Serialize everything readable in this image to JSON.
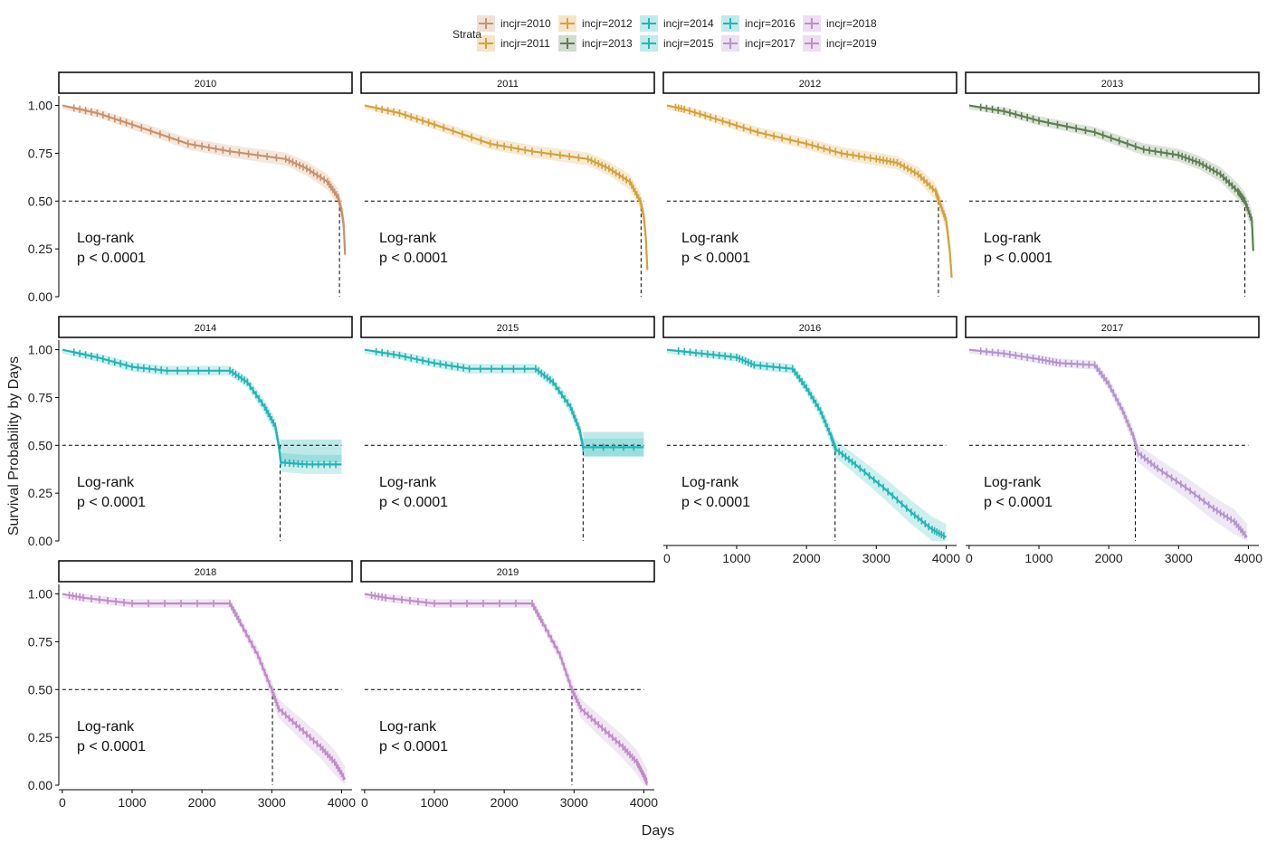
{
  "legend": {
    "title": "Strata",
    "items": [
      {
        "label": "incjr=2010",
        "color": "#C8926A"
      },
      {
        "label": "incjr=2011",
        "color": "#D4A23C"
      },
      {
        "label": "incjr=2012",
        "color": "#D4A23C"
      },
      {
        "label": "incjr=2013",
        "color": "#5E7E52"
      },
      {
        "label": "incjr=2014",
        "color": "#23B5B5"
      },
      {
        "label": "incjr=2015",
        "color": "#23B5B5"
      },
      {
        "label": "incjr=2016",
        "color": "#23B5B5"
      },
      {
        "label": "incjr=2017",
        "color": "#B394CC"
      },
      {
        "label": "incjr=2018",
        "color": "#C08CC8"
      },
      {
        "label": "incjr=2019",
        "color": "#C08CC8"
      }
    ]
  },
  "axes": {
    "xlabel": "Days",
    "ylabel": "Survival Probability by Days"
  },
  "chart_data": {
    "type": "line",
    "xlabel": "Days",
    "ylabel": "Survival Probability by Days",
    "xlim": [
      -50,
      4150
    ],
    "ylim": [
      0,
      1.05
    ],
    "xticks": [
      "0",
      "1000",
      "2000",
      "3000",
      "4000"
    ],
    "yticks": [
      "0.00",
      "0.25",
      "0.50",
      "0.75",
      "1.00"
    ],
    "xtick_values": [
      0,
      1000,
      2000,
      3000,
      4000
    ],
    "ytick_values": [
      0,
      0.25,
      0.5,
      0.75,
      1.0
    ],
    "reference_y": 0.5,
    "panels": [
      {
        "title": "2010",
        "color": "#C8926A",
        "annotation": [
          "Log-rank",
          "p < 0.0001"
        ],
        "median": 3970,
        "points": [
          [
            0,
            1.0
          ],
          [
            500,
            0.96
          ],
          [
            1000,
            0.9
          ],
          [
            1800,
            0.8
          ],
          [
            2400,
            0.76
          ],
          [
            3200,
            0.72
          ],
          [
            3500,
            0.67
          ],
          [
            3800,
            0.6
          ],
          [
            3950,
            0.52
          ],
          [
            4000,
            0.45
          ],
          [
            4030,
            0.38
          ],
          [
            4050,
            0.22
          ]
        ]
      },
      {
        "title": "2011",
        "color": "#D4A23C",
        "annotation": [
          "Log-rank",
          "p < 0.0001"
        ],
        "median": 3960,
        "points": [
          [
            0,
            1.0
          ],
          [
            500,
            0.96
          ],
          [
            1000,
            0.9
          ],
          [
            1800,
            0.8
          ],
          [
            2400,
            0.76
          ],
          [
            3200,
            0.72
          ],
          [
            3500,
            0.67
          ],
          [
            3800,
            0.6
          ],
          [
            3950,
            0.5
          ],
          [
            4000,
            0.42
          ],
          [
            4030,
            0.3
          ],
          [
            4050,
            0.14
          ]
        ]
      },
      {
        "title": "2012",
        "color": "#D4A23C",
        "annotation": [
          "Log-rank",
          "p < 0.0001"
        ],
        "median": 3890,
        "points": [
          [
            0,
            1.0
          ],
          [
            250,
            0.98
          ],
          [
            700,
            0.93
          ],
          [
            1300,
            0.86
          ],
          [
            2000,
            0.8
          ],
          [
            2500,
            0.75
          ],
          [
            3000,
            0.72
          ],
          [
            3300,
            0.7
          ],
          [
            3600,
            0.64
          ],
          [
            3850,
            0.55
          ],
          [
            3900,
            0.5
          ],
          [
            4000,
            0.4
          ],
          [
            4050,
            0.25
          ],
          [
            4080,
            0.1
          ]
        ]
      },
      {
        "title": "2013",
        "color": "#5E7E52",
        "annotation": [
          "Log-rank",
          "p < 0.0001"
        ],
        "median": 3950,
        "points": [
          [
            0,
            1.0
          ],
          [
            500,
            0.97
          ],
          [
            1000,
            0.92
          ],
          [
            1800,
            0.86
          ],
          [
            2500,
            0.77
          ],
          [
            3000,
            0.74
          ],
          [
            3300,
            0.7
          ],
          [
            3600,
            0.64
          ],
          [
            3850,
            0.55
          ],
          [
            3950,
            0.5
          ],
          [
            4050,
            0.4
          ],
          [
            4070,
            0.24
          ]
        ]
      },
      {
        "title": "2014",
        "color": "#23B5B5",
        "annotation": [
          "Log-rank",
          "p < 0.0001"
        ],
        "median": 3120,
        "ci_band": [
          0.41,
          0.53
        ],
        "points": [
          [
            0,
            1.0
          ],
          [
            500,
            0.96
          ],
          [
            1000,
            0.91
          ],
          [
            1500,
            0.89
          ],
          [
            2400,
            0.89
          ],
          [
            2650,
            0.83
          ],
          [
            2900,
            0.7
          ],
          [
            3050,
            0.6
          ],
          [
            3100,
            0.5
          ],
          [
            3130,
            0.41
          ],
          [
            3500,
            0.4
          ],
          [
            4000,
            0.4
          ]
        ]
      },
      {
        "title": "2015",
        "color": "#23B5B5",
        "annotation": [
          "Log-rank",
          "p < 0.0001"
        ],
        "median": 3130,
        "ci_band": [
          0.44,
          0.57
        ],
        "points": [
          [
            0,
            1.0
          ],
          [
            500,
            0.97
          ],
          [
            1000,
            0.93
          ],
          [
            1500,
            0.9
          ],
          [
            2450,
            0.9
          ],
          [
            2700,
            0.83
          ],
          [
            2950,
            0.7
          ],
          [
            3080,
            0.58
          ],
          [
            3130,
            0.49
          ],
          [
            4000,
            0.49
          ]
        ]
      },
      {
        "title": "2016",
        "color": "#23B5B5",
        "annotation": [
          "Log-rank",
          "p < 0.0001"
        ],
        "median": 2410,
        "points": [
          [
            0,
            1.0
          ],
          [
            500,
            0.98
          ],
          [
            1000,
            0.96
          ],
          [
            1250,
            0.92
          ],
          [
            1800,
            0.9
          ],
          [
            2000,
            0.8
          ],
          [
            2200,
            0.68
          ],
          [
            2350,
            0.55
          ],
          [
            2420,
            0.48
          ],
          [
            2700,
            0.4
          ],
          [
            3100,
            0.28
          ],
          [
            3500,
            0.15
          ],
          [
            3800,
            0.06
          ],
          [
            4000,
            0.02
          ]
        ]
      },
      {
        "title": "2017",
        "color": "#B394CC",
        "annotation": [
          "Log-rank",
          "p < 0.0001"
        ],
        "median": 2380,
        "points": [
          [
            0,
            1.0
          ],
          [
            500,
            0.98
          ],
          [
            1000,
            0.95
          ],
          [
            1300,
            0.93
          ],
          [
            1800,
            0.92
          ],
          [
            2000,
            0.82
          ],
          [
            2200,
            0.68
          ],
          [
            2350,
            0.55
          ],
          [
            2420,
            0.46
          ],
          [
            2700,
            0.38
          ],
          [
            3100,
            0.28
          ],
          [
            3500,
            0.17
          ],
          [
            3800,
            0.1
          ],
          [
            3980,
            0.02
          ]
        ]
      },
      {
        "title": "2018",
        "color": "#C08CC8",
        "annotation": [
          "Log-rank",
          "p < 0.0001"
        ],
        "median": 3010,
        "points": [
          [
            0,
            1.0
          ],
          [
            300,
            0.98
          ],
          [
            1000,
            0.95
          ],
          [
            2400,
            0.95
          ],
          [
            2550,
            0.85
          ],
          [
            2800,
            0.68
          ],
          [
            3000,
            0.5
          ],
          [
            3100,
            0.4
          ],
          [
            3400,
            0.3
          ],
          [
            3700,
            0.2
          ],
          [
            3900,
            0.12
          ],
          [
            4050,
            0.03
          ]
        ]
      },
      {
        "title": "2019",
        "color": "#C08CC8",
        "annotation": [
          "Log-rank",
          "p < 0.0001"
        ],
        "median": 2970,
        "points": [
          [
            0,
            1.0
          ],
          [
            300,
            0.98
          ],
          [
            1000,
            0.95
          ],
          [
            2400,
            0.95
          ],
          [
            2550,
            0.85
          ],
          [
            2800,
            0.68
          ],
          [
            2970,
            0.5
          ],
          [
            3100,
            0.4
          ],
          [
            3400,
            0.3
          ],
          [
            3700,
            0.2
          ],
          [
            3900,
            0.12
          ],
          [
            4000,
            0.05
          ],
          [
            4050,
            0.01
          ]
        ]
      }
    ]
  }
}
